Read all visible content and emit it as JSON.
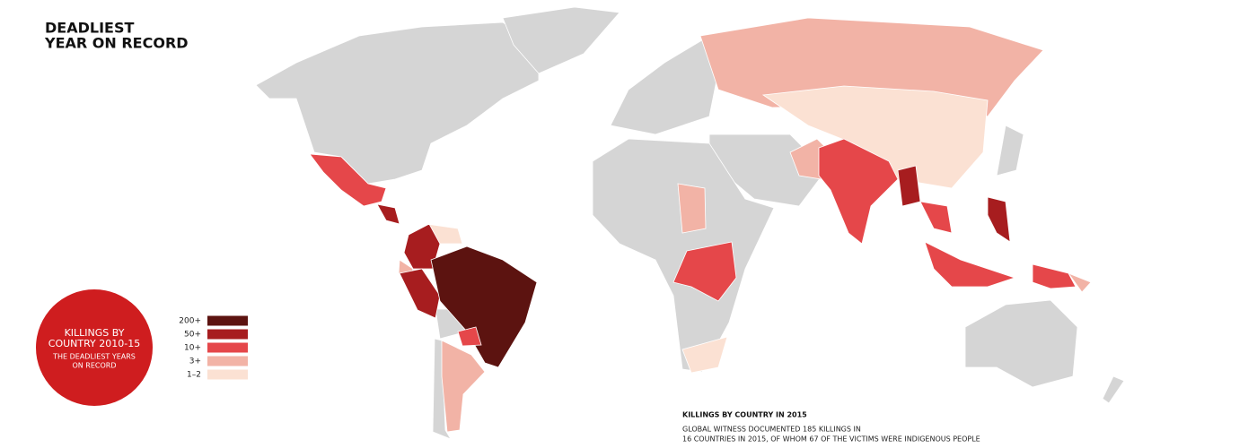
{
  "header": {
    "title_lines": [
      "DEADLIEST",
      "YEAR ON RECORD"
    ]
  },
  "badge": {
    "title_lines": [
      "KILLINGS BY",
      "COUNTRY 2010-15"
    ],
    "subtitle_lines": [
      "THE DEADLIEST YEARS",
      "ON RECORD"
    ],
    "color": "#cf1d1f"
  },
  "legend": {
    "items": [
      {
        "label": "200+",
        "color": "#5c1310"
      },
      {
        "label": "50+",
        "color": "#a71d1f"
      },
      {
        "label": "10+",
        "color": "#e5474a"
      },
      {
        "label": "3+",
        "color": "#f2b3a6"
      },
      {
        "label": "1–2",
        "color": "#fbe1d3"
      }
    ]
  },
  "footer": {
    "title": "KILLINGS BY COUNTRY IN 2015",
    "lines": [
      "GLOBAL WITNESS DOCUMENTED 185 KILLINGS IN",
      "16 COUNTRIES IN 2015, OF WHOM 67 OF THE VICTIMS WERE INDIGENOUS PEOPLE"
    ]
  }
}
